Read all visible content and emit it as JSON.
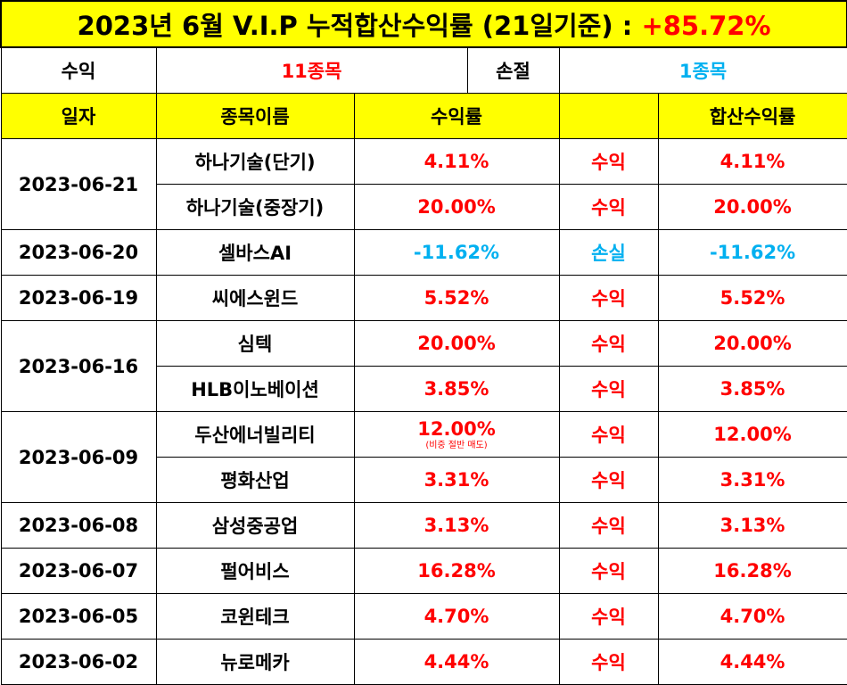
{
  "title": {
    "text": "2023년 6월 V.I.P 누적합산수익률 (21일기준) :",
    "total_rate": "+85.72%"
  },
  "summary": {
    "profit_label": "수익",
    "profit_count": "11종목",
    "loss_label": "손절",
    "loss_count": "1종목"
  },
  "headers": {
    "date": "일자",
    "stock_name": "종목이름",
    "rate": "수익률",
    "result": "",
    "cumulative": "합산수익률"
  },
  "groups": [
    {
      "date": "2023-06-21",
      "items": [
        {
          "name": "하나기술(단기)",
          "rate": "4.11%",
          "note": "",
          "result": "수익",
          "cumulative": "4.11%",
          "status": "profit"
        },
        {
          "name": "하나기술(중장기)",
          "rate": "20.00%",
          "note": "",
          "result": "수익",
          "cumulative": "20.00%",
          "status": "profit"
        }
      ]
    },
    {
      "date": "2023-06-20",
      "items": [
        {
          "name": "셀바스AI",
          "rate": "-11.62%",
          "note": "",
          "result": "손실",
          "cumulative": "-11.62%",
          "status": "loss"
        }
      ]
    },
    {
      "date": "2023-06-19",
      "items": [
        {
          "name": "씨에스윈드",
          "rate": "5.52%",
          "note": "",
          "result": "수익",
          "cumulative": "5.52%",
          "status": "profit"
        }
      ]
    },
    {
      "date": "2023-06-16",
      "items": [
        {
          "name": "심텍",
          "rate": "20.00%",
          "note": "",
          "result": "수익",
          "cumulative": "20.00%",
          "status": "profit"
        },
        {
          "name": "HLB이노베이션",
          "rate": "3.85%",
          "note": "",
          "result": "수익",
          "cumulative": "3.85%",
          "status": "profit"
        }
      ]
    },
    {
      "date": "2023-06-09",
      "items": [
        {
          "name": "두산에너빌리티",
          "rate": "12.00%",
          "note": "(비중 절반 매도)",
          "result": "수익",
          "cumulative": "12.00%",
          "status": "profit"
        },
        {
          "name": "평화산업",
          "rate": "3.31%",
          "note": "",
          "result": "수익",
          "cumulative": "3.31%",
          "status": "profit"
        }
      ]
    },
    {
      "date": "2023-06-08",
      "items": [
        {
          "name": "삼성중공업",
          "rate": "3.13%",
          "note": "",
          "result": "수익",
          "cumulative": "3.13%",
          "status": "profit"
        }
      ]
    },
    {
      "date": "2023-06-07",
      "items": [
        {
          "name": "펄어비스",
          "rate": "16.28%",
          "note": "",
          "result": "수익",
          "cumulative": "16.28%",
          "status": "profit"
        }
      ]
    },
    {
      "date": "2023-06-05",
      "items": [
        {
          "name": "코윈테크",
          "rate": "4.70%",
          "note": "",
          "result": "수익",
          "cumulative": "4.70%",
          "status": "profit"
        }
      ]
    },
    {
      "date": "2023-06-02",
      "items": [
        {
          "name": "뉴로메카",
          "rate": "4.44%",
          "note": "",
          "result": "수익",
          "cumulative": "4.44%",
          "status": "profit"
        }
      ]
    }
  ],
  "colors": {
    "header_bg": "#ffff00",
    "profit": "#ff0000",
    "loss": "#00b0f0"
  }
}
